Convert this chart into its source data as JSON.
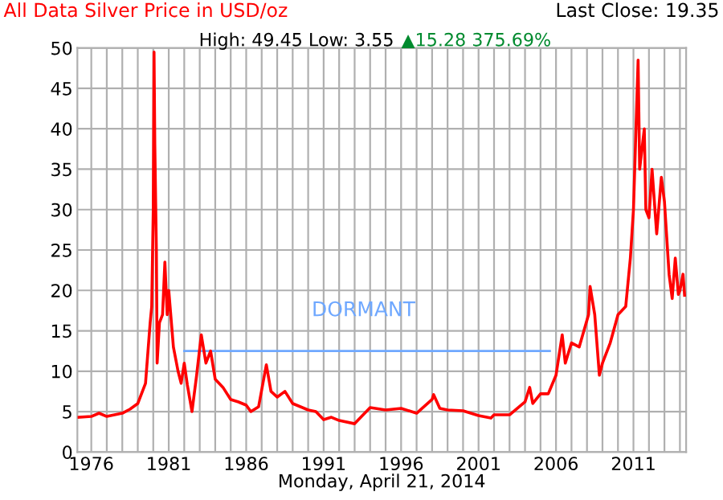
{
  "chart_data": {
    "type": "line",
    "title": "All Data Silver Price in USD/oz",
    "subtitle": "High: 49.45 Low: 3.55",
    "xlabel": "Monday, April 21, 2014",
    "annotations": [
      "Last Close: 19.35",
      "▲15.28 375.69%",
      "DORMANT"
    ],
    "xlim": [
      1975.1,
      2014.4
    ],
    "ylim": [
      0,
      50
    ],
    "xticks": [
      {
        "value": 1976,
        "label": "1976"
      },
      {
        "value": 1977,
        "label": null
      },
      {
        "value": 1978,
        "label": null
      },
      {
        "value": 1979,
        "label": null
      },
      {
        "value": 1980,
        "label": null
      },
      {
        "value": 1981,
        "label": "1981"
      },
      {
        "value": 1982,
        "label": null
      },
      {
        "value": 1983,
        "label": null
      },
      {
        "value": 1984,
        "label": null
      },
      {
        "value": 1985,
        "label": null
      },
      {
        "value": 1986,
        "label": "1986"
      },
      {
        "value": 1987,
        "label": null
      },
      {
        "value": 1988,
        "label": null
      },
      {
        "value": 1989,
        "label": null
      },
      {
        "value": 1990,
        "label": null
      },
      {
        "value": 1991,
        "label": "1991"
      },
      {
        "value": 1992,
        "label": null
      },
      {
        "value": 1993,
        "label": null
      },
      {
        "value": 1994,
        "label": null
      },
      {
        "value": 1995,
        "label": null
      },
      {
        "value": 1996,
        "label": "1996"
      },
      {
        "value": 1997,
        "label": null
      },
      {
        "value": 1998,
        "label": null
      },
      {
        "value": 1999,
        "label": null
      },
      {
        "value": 2000,
        "label": null
      },
      {
        "value": 2001,
        "label": "2001"
      },
      {
        "value": 2002,
        "label": null
      },
      {
        "value": 2003,
        "label": null
      },
      {
        "value": 2004,
        "label": null
      },
      {
        "value": 2005,
        "label": null
      },
      {
        "value": 2006,
        "label": "2006"
      },
      {
        "value": 2007,
        "label": null
      },
      {
        "value": 2008,
        "label": null
      },
      {
        "value": 2009,
        "label": null
      },
      {
        "value": 2010,
        "label": null
      },
      {
        "value": 2011,
        "label": "2011"
      },
      {
        "value": 2012,
        "label": null
      },
      {
        "value": 2013,
        "label": null
      },
      {
        "value": 2014,
        "label": null
      }
    ],
    "yticks": [
      0,
      5,
      10,
      15,
      20,
      25,
      30,
      35,
      40,
      45,
      50
    ],
    "grid": true,
    "legend": false,
    "series": [
      {
        "color": "#ff0000",
        "x": [
          1975.2,
          1976,
          1976.5,
          1977,
          1977.5,
          1978,
          1978.5,
          1979,
          1979.5,
          1979.8,
          1979.9,
          1980.0,
          1980.05,
          1980.1,
          1980.2,
          1980.25,
          1980.4,
          1980.6,
          1980.75,
          1980.9,
          1981.0,
          1981.3,
          1981.6,
          1981.8,
          1982.0,
          1982.2,
          1982.5,
          1982.8,
          1983.1,
          1983.4,
          1983.7,
          1984,
          1984.5,
          1985,
          1985.5,
          1986,
          1986.3,
          1986.8,
          1987.3,
          1987.6,
          1988,
          1988.5,
          1989,
          1990,
          1990.5,
          1991,
          1991.5,
          1992,
          1993,
          1993.5,
          1994,
          1995,
          1996,
          1997,
          1998,
          1998.1,
          1998.5,
          1999,
          2000,
          2001,
          2001.8,
          2002,
          2003,
          2004,
          2004.3,
          2004.5,
          2005,
          2005.5,
          2006,
          2006.4,
          2006.6,
          2007,
          2007.5,
          2008.1,
          2008.2,
          2008.5,
          2008.8,
          2009,
          2009.5,
          2010,
          2010.5,
          2010.8,
          2011.0,
          2011.3,
          2011.4,
          2011.7,
          2011.8,
          2012.0,
          2012.2,
          2012.5,
          2012.8,
          2013.0,
          2013.3,
          2013.5,
          2013.7,
          2013.9,
          2014.0,
          2014.2,
          2014.3
        ],
        "values": [
          4.3,
          4.4,
          4.8,
          4.4,
          4.6,
          4.8,
          5.3,
          6.0,
          8.5,
          16,
          18,
          30,
          49.5,
          38,
          25,
          11,
          16,
          17,
          23.5,
          17,
          20,
          13,
          10,
          8.5,
          11,
          8.3,
          5.0,
          9.5,
          14.5,
          11,
          12.5,
          9,
          8,
          6.5,
          6.2,
          5.8,
          5.0,
          5.6,
          10.8,
          7.5,
          6.8,
          7.5,
          6,
          5.2,
          5.0,
          4.0,
          4.3,
          3.9,
          3.5,
          4.5,
          5.5,
          5.2,
          5.4,
          4.8,
          6.5,
          7.1,
          5.4,
          5.2,
          5.1,
          4.5,
          4.2,
          4.6,
          4.6,
          6.2,
          8.0,
          6.0,
          7.2,
          7.2,
          9.5,
          14.5,
          11,
          13.5,
          13,
          17,
          20.5,
          17,
          9.5,
          11,
          13.5,
          17,
          18,
          24,
          30,
          48.5,
          35,
          40,
          30,
          29,
          35,
          27,
          34,
          31,
          22,
          19,
          24,
          19.5,
          20,
          22,
          19.4
        ]
      },
      {
        "color": "#6fa8ff",
        "x": [
          1982.0,
          2005.6
        ],
        "values": [
          12.5,
          12.5
        ]
      }
    ]
  }
}
